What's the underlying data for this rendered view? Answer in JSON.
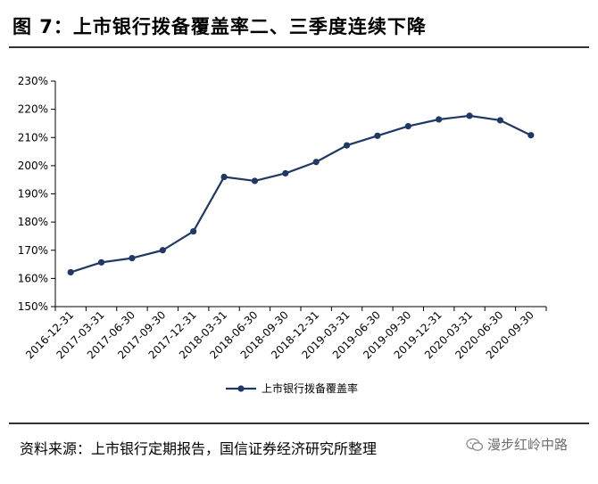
{
  "figure_title": "图 7：上市银行拨备覆盖率二、三季度连续下降",
  "source": "资料来源：上市银行定期报告，国信证券经济研究所整理",
  "watermark": {
    "text": "漫步红岭中路",
    "icon": "wechat-icon"
  },
  "colors": {
    "series": "#1f3864",
    "rule": "#333333"
  },
  "chart_data": {
    "type": "line",
    "title": "",
    "xlabel": "",
    "ylabel": "",
    "ylim": [
      150,
      230
    ],
    "yticks": [
      150,
      160,
      170,
      180,
      190,
      200,
      210,
      220,
      230
    ],
    "ytick_labels": [
      "150%",
      "160%",
      "170%",
      "180%",
      "190%",
      "200%",
      "210%",
      "220%",
      "230%"
    ],
    "categories": [
      "2016-12-31",
      "2017-03-31",
      "2017-06-30",
      "2017-09-30",
      "2017-12-31",
      "2018-03-31",
      "2018-06-30",
      "2018-09-30",
      "2018-12-31",
      "2019-03-31",
      "2019-06-30",
      "2019-09-30",
      "2019-12-31",
      "2020-03-31",
      "2020-06-30",
      "2020-09-30"
    ],
    "series": [
      {
        "name": "上市银行拨备覆盖率",
        "values": [
          162.2,
          165.7,
          167.2,
          170.0,
          176.7,
          196.0,
          194.6,
          197.3,
          201.3,
          207.2,
          210.6,
          214.0,
          216.4,
          217.7,
          216.1,
          210.8
        ]
      }
    ],
    "grid": false,
    "legend": "bottom-center"
  }
}
